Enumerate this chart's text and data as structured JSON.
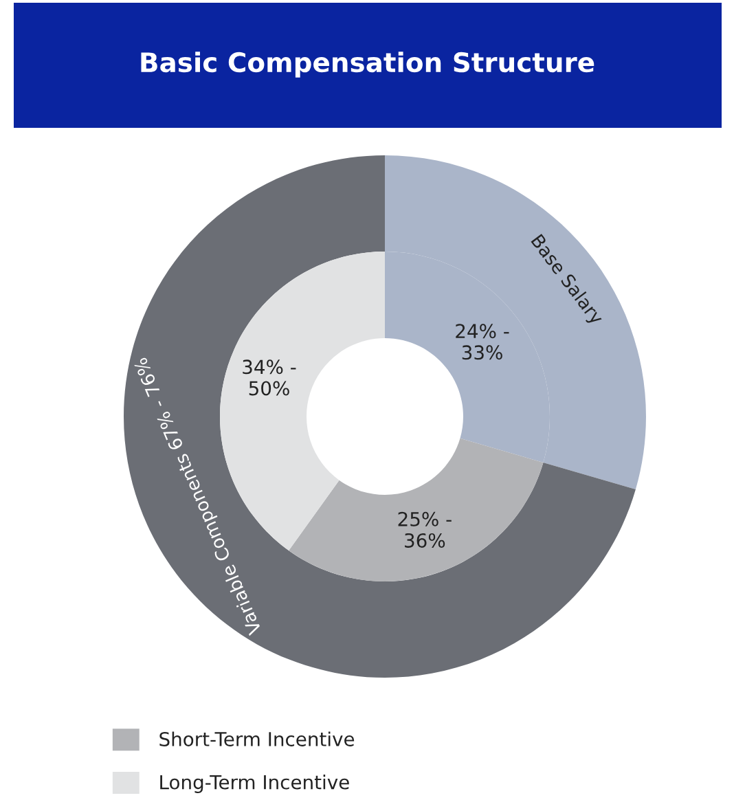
{
  "chart_data": {
    "type": "donut",
    "title": "Basic Compensation Structure",
    "categories": [
      null,
      "Short-Term Incentive",
      "Long-Term Incentive"
    ],
    "legend": "bottom left",
    "series": [
      {
        "values": [
          29.5,
          70.5,
          null
        ],
        "colors": [
          "#aab5c9",
          "#6b6e75",
          null
        ]
      },
      {
        "values": [
          29.5,
          30.4,
          40.1
        ],
        "colors": [
          "#aab5c9",
          "#b2b3b6",
          "#e1e2e3"
        ]
      }
    ],
    "annotations": [
      "Base Salary",
      "Variable Components 67% - 76%",
      "24% - 33%",
      "25% - 36%",
      "34% - 50%"
    ]
  }
}
